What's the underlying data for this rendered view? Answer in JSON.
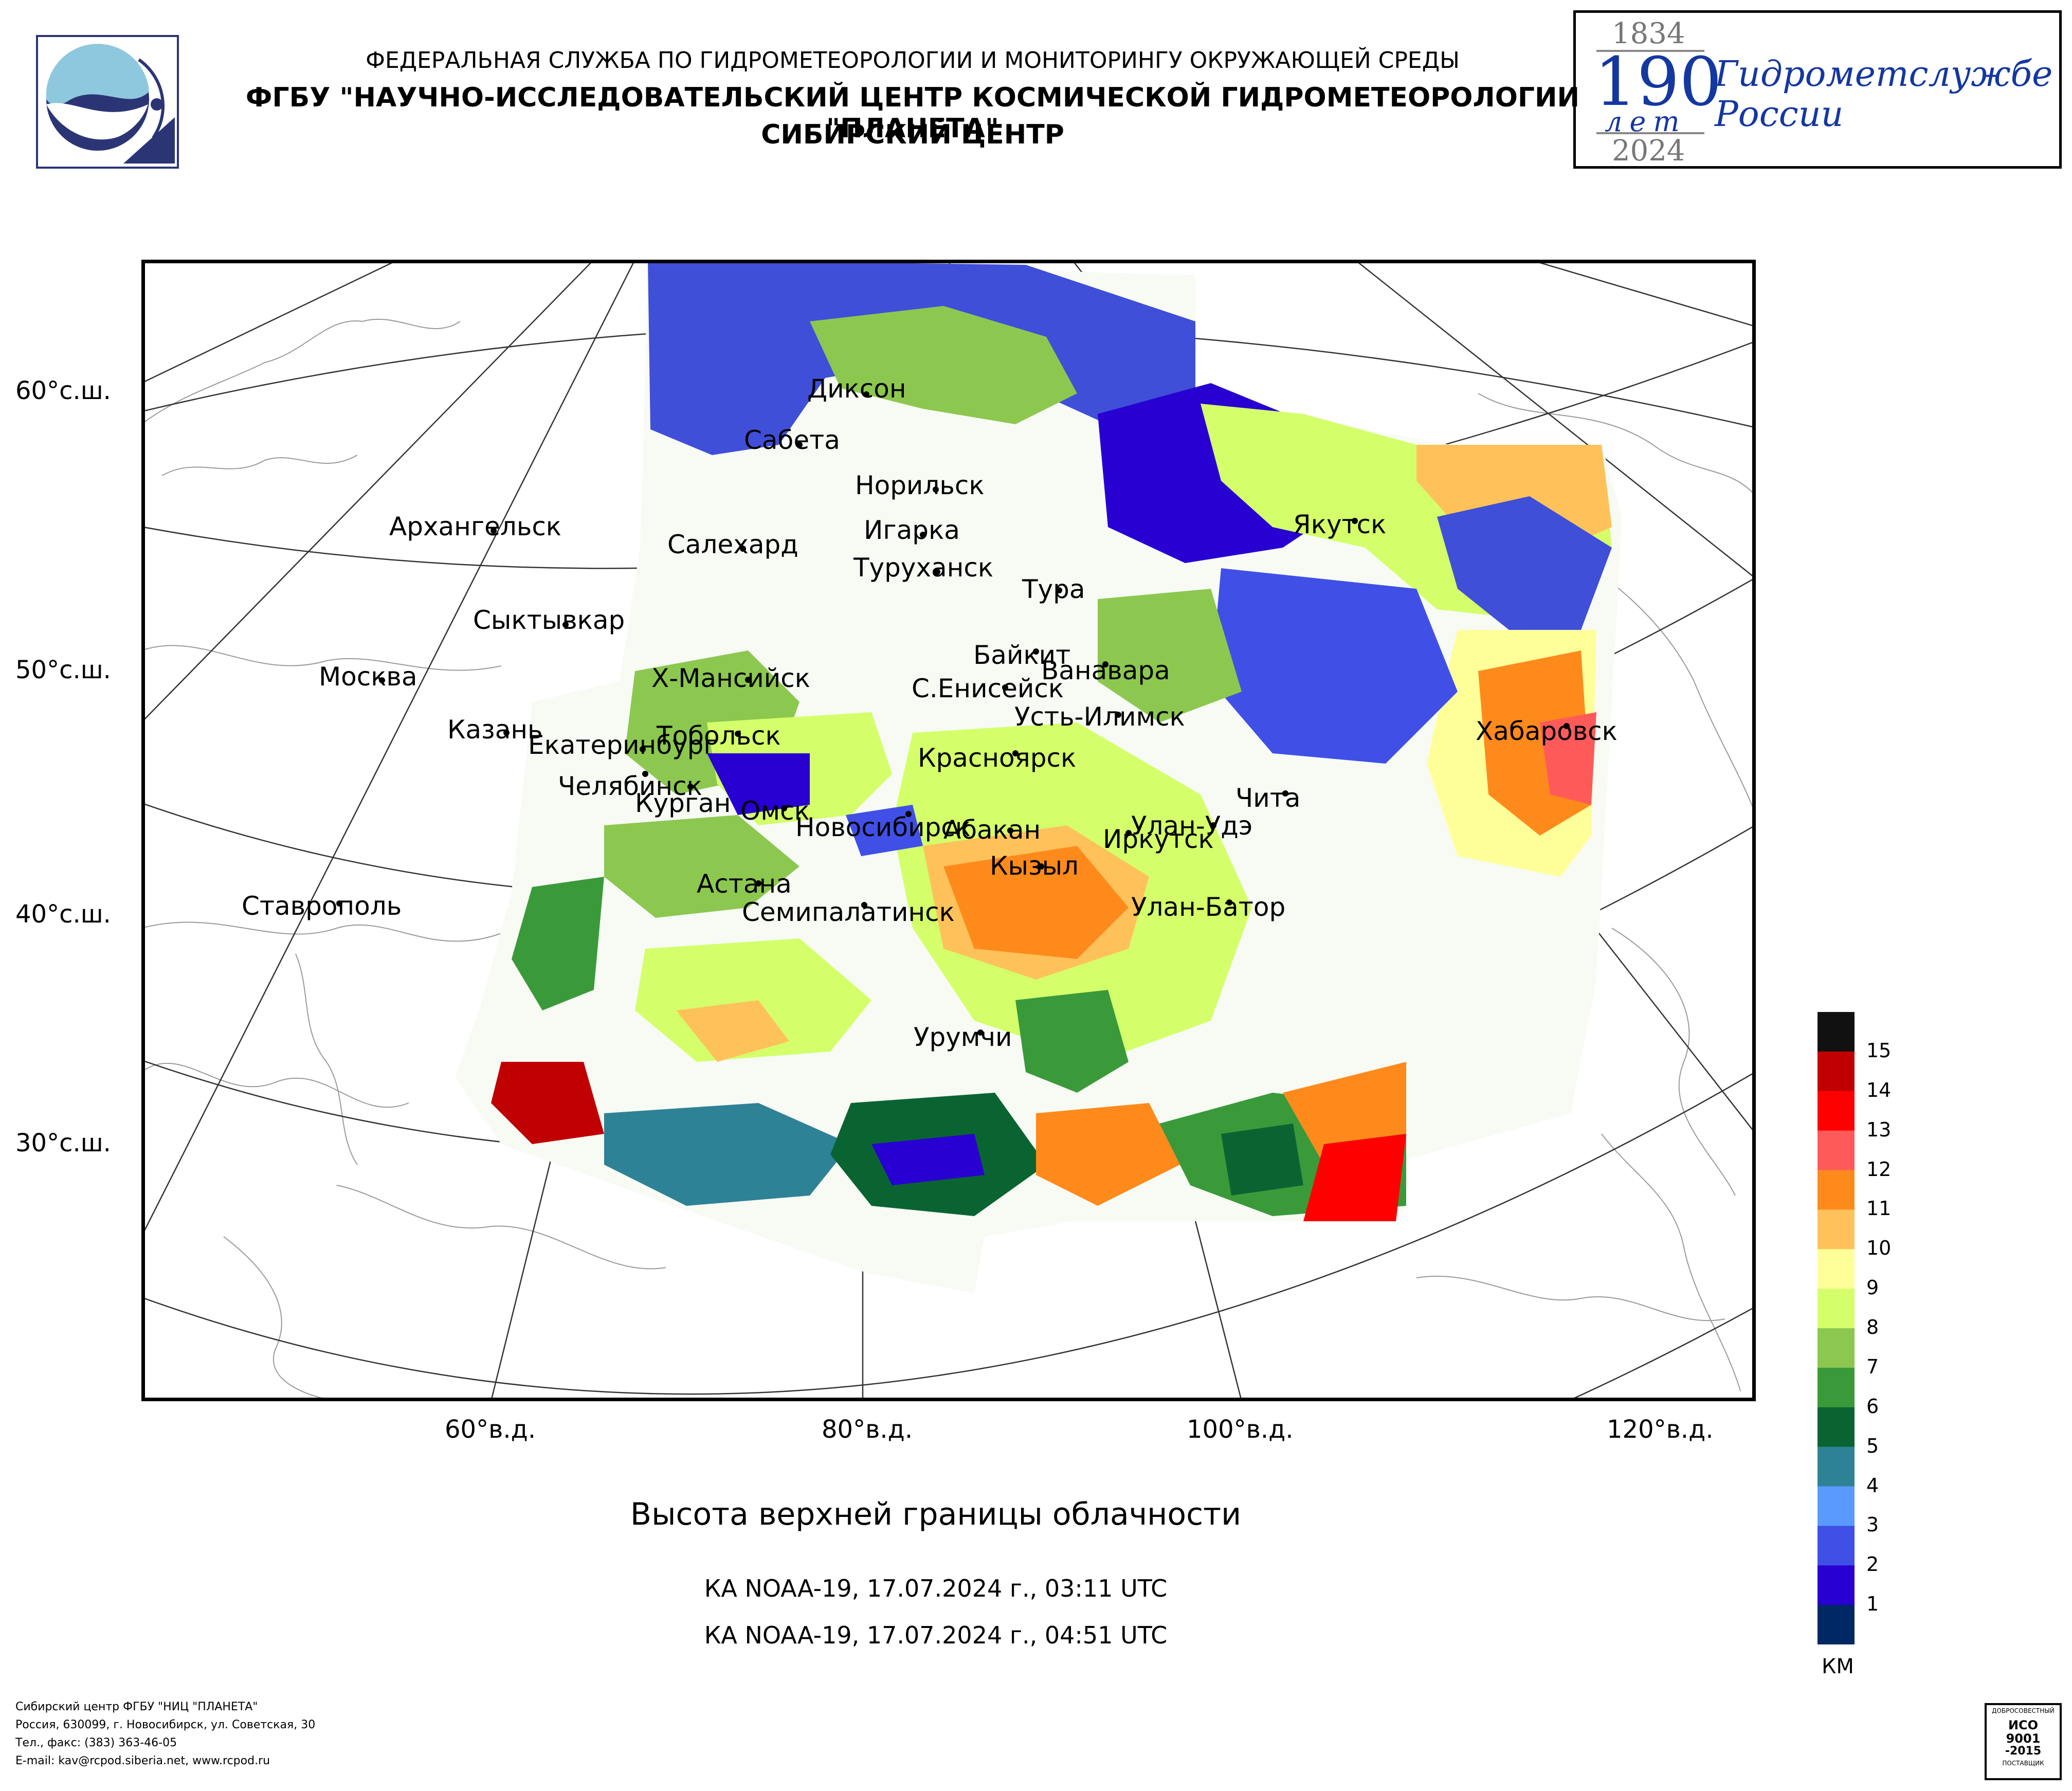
{
  "header": {
    "line1": "ФЕДЕРАЛЬНАЯ СЛУЖБА ПО ГИДРОМЕТЕОРОЛОГИИ И МОНИТОРИНГУ ОКРУЖАЮЩЕЙ СРЕДЫ",
    "line2": "ФГБУ \"НАУЧНО-ИССЛЕДОВАТЕЛЬСКИЙ ЦЕНТР КОСМИЧЕСКОЙ ГИДРОМЕТЕОРОЛОГИИ \"ПЛАНЕТА\"",
    "line3": "СИБИРСКИЙ ЦЕНТР"
  },
  "jubilee": {
    "year_start": "1834",
    "number": "190",
    "years_word": "лет",
    "year_end": "2024",
    "text_line1": "Гидрометслужбе",
    "text_line2": "России"
  },
  "map": {
    "lat_labels": [
      "60°с.ш.",
      "50°с.ш.",
      "40°с.ш.",
      "30°с.ш."
    ],
    "lon_labels": [
      "60°в.д.",
      "80°в.д.",
      "100°в.д.",
      "120°в.д."
    ],
    "cities": {
      "dikson": "Диксон",
      "sabeta": "Сабета",
      "norilsk": "Норильск",
      "igarka": "Игарка",
      "turukhansk": "Туруханск",
      "salekhard": "Салехард",
      "arkhangelsk": "Архангельск",
      "syktyvkar": "Сыктывкар",
      "moscow": "Москва",
      "kazan": "Казань",
      "yekaterinburg": "Екатеринбург",
      "chelyabinsk": "Челябинск",
      "kurgan": "Курган",
      "tobolsk": "Тобольск",
      "khmansiysk": "Х-Мансийск",
      "omsk": "Омск",
      "novosibirsk": "Новосибирск",
      "astana": "Астана",
      "semipalatinsk": "Семипалатинск",
      "stavropol": "Ставрополь",
      "tura": "Тура",
      "yakutsk": "Якутск",
      "baykit": "Байкит",
      "vanavara": "Ванавара",
      "s_yeniseysk": "С.Енисейск",
      "ust_ilimsk": "Усть-Илимск",
      "krasnoyarsk": "Красноярск",
      "abakan": "Абакан",
      "kyzyl": "Кызыл",
      "irkutsk": "Иркутск",
      "ulan_ude": "Улан-Удэ",
      "chita": "Чита",
      "ulan_bator": "Улан-Батор",
      "khabarovsk": "Хабаровск",
      "urumqi": "Урумчи"
    }
  },
  "title": "Высота верхней границы облачности",
  "satellite_lines": [
    "КА NOAA-19, 17.07.2024 г., 03:11 UTC",
    "КА NOAA-19, 17.07.2024 г., 04:51 UTC"
  ],
  "legend": {
    "unit": "КМ",
    "levels": [
      "15",
      "14",
      "13",
      "12",
      "11",
      "10",
      "9",
      "8",
      "7",
      "6",
      "5",
      "4",
      "3",
      "2",
      "1"
    ],
    "colors": [
      "#111111",
      "#c00000",
      "#ff0000",
      "#ff5a5a",
      "#ff8a1c",
      "#ffc25a",
      "#ffff9a",
      "#d4ff6a",
      "#8cc850",
      "#3a9a3a",
      "#0a6432",
      "#2e8296",
      "#5a9aff",
      "#4050e6",
      "#2800d2",
      "#002864"
    ]
  },
  "footer": {
    "line1": "Сибирский центр ФГБУ \"НИЦ \"ПЛАНЕТА\"",
    "line2": "Россия, 630099, г. Новосибирск, ул. Советская, 30",
    "line3": "Тел., факс: (383) 363-46-05",
    "line4": "E-mail: kav@rcpod.siberia.net, www.rcpod.ru"
  },
  "iso_badge": {
    "top": "ДОБРОСОВЕСТНЫЙ",
    "code": "ИСО",
    "num": "9001",
    "year": "-2015",
    "bottom": "ПОСТАВЩИК"
  }
}
